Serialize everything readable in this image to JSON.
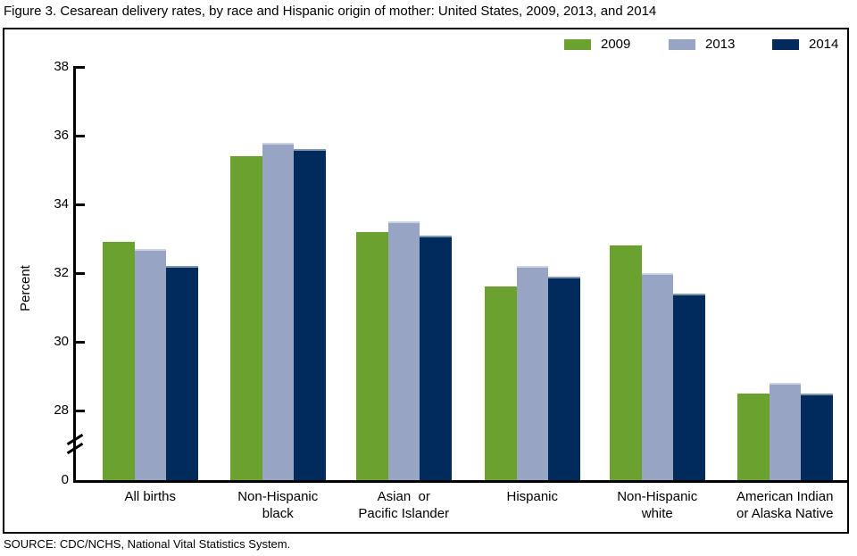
{
  "page": {
    "title": "Figure 3. Cesarean delivery rates, by race and Hispanic origin of mother: United States, 2009, 2013, and 2014",
    "source": "SOURCE: CDC/NCHS, National Vital Statistics System."
  },
  "chart_data": {
    "type": "bar",
    "title": "Figure 3. Cesarean delivery rates, by race and Hispanic origin of mother: United States, 2009, 2013, and 2014",
    "xlabel": "",
    "ylabel": "Percent",
    "yticks": [
      "38",
      "36",
      "34",
      "32",
      "30",
      "28",
      "0"
    ],
    "ylim": [
      0,
      38
    ],
    "axis_break": {
      "axis": "y",
      "between": [
        0,
        28
      ]
    },
    "grid": false,
    "legend_position": "top-right",
    "categories": [
      "All births",
      "Non-Hispanic\nblack",
      "Asian  or\nPacific Islander",
      "Hispanic",
      "Non-Hispanic\nwhite",
      "American Indian\nor Alaska Native"
    ],
    "series": [
      {
        "name": "2009",
        "color": "#6BA22F",
        "values": [
          32.9,
          35.4,
          33.2,
          31.6,
          32.8,
          28.5
        ]
      },
      {
        "name": "2013",
        "color": "#98A4C4",
        "values": [
          32.7,
          35.8,
          33.5,
          32.2,
          32.0,
          28.8
        ]
      },
      {
        "name": "2014",
        "color": "#002B5C",
        "values": [
          32.2,
          35.6,
          33.1,
          31.9,
          31.4,
          28.5
        ]
      }
    ]
  }
}
